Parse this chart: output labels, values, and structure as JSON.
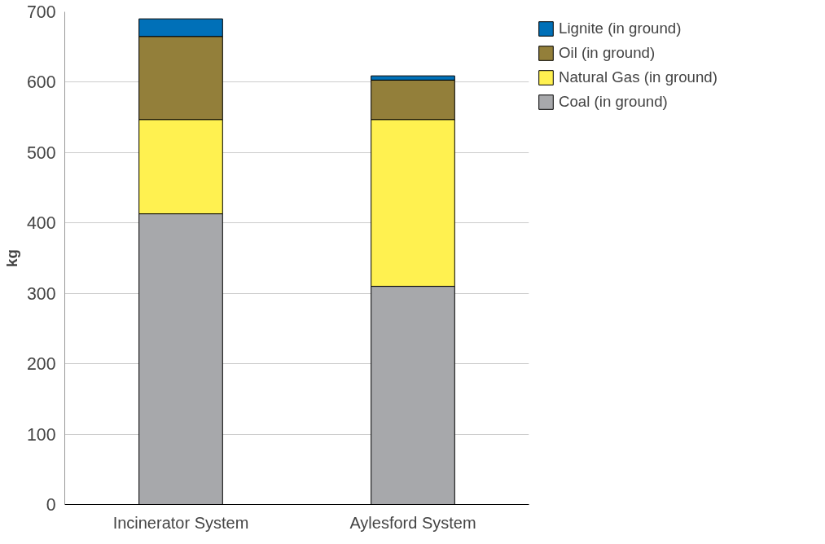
{
  "chart_data": {
    "type": "bar",
    "stacked": true,
    "ylabel": "kg",
    "categories": [
      "Incinerator System",
      "Aylesford System"
    ],
    "series": [
      {
        "name": "Coal (in ground)",
        "color": "#a7a8ab",
        "values": [
          413,
          310
        ]
      },
      {
        "name": "Natural Gas (in ground)",
        "color": "#fff150",
        "values": [
          134,
          237
        ]
      },
      {
        "name": "Oil (in ground)",
        "color": "#937f3a",
        "values": [
          118,
          56
        ]
      },
      {
        "name": "Lignite (in ground)",
        "color": "#0070b8",
        "values": [
          25,
          6
        ]
      }
    ],
    "ylim": [
      0,
      700
    ],
    "yticks": [
      0,
      100,
      200,
      300,
      400,
      500,
      600,
      700
    ],
    "grid": "y",
    "legend": "right"
  }
}
